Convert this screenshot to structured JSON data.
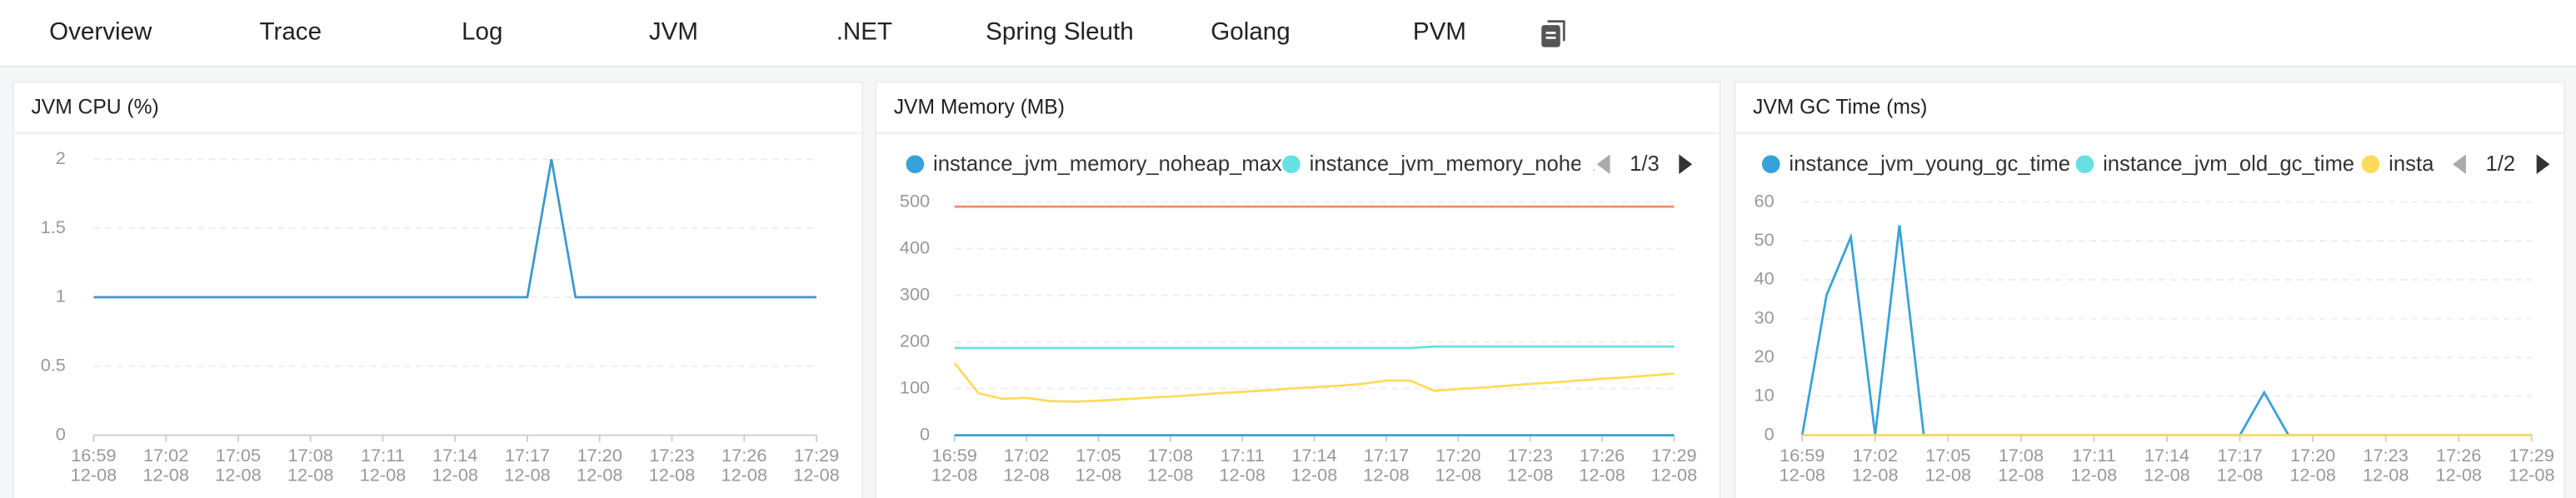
{
  "tabs": {
    "items": [
      "Overview",
      "Trace",
      "Log",
      "JVM",
      ".NET",
      "Spring Sleuth",
      "Golang",
      "PVM"
    ],
    "active": 3,
    "active_color": "#3a9cf0"
  },
  "chart_data": [
    {
      "type": "line",
      "title": "JVM CPU (%)",
      "categories": [
        "16:59",
        null,
        null,
        "17:02",
        null,
        null,
        "17:05",
        null,
        null,
        "17:08",
        null,
        null,
        "17:11",
        null,
        null,
        "17:14",
        null,
        null,
        "17:17",
        null,
        null,
        "17:20",
        null,
        null,
        "17:23",
        null,
        null,
        "17:26",
        null,
        null,
        "17:29"
      ],
      "date_label": "12-08",
      "series": [
        {
          "color": "#3c98cf",
          "values": [
            1,
            1,
            1,
            1,
            1,
            1,
            1,
            1,
            1,
            1,
            1,
            1,
            1,
            1,
            1,
            1,
            1,
            1,
            1,
            2,
            1,
            1,
            1,
            1,
            1,
            1,
            1,
            1,
            1,
            1,
            1
          ]
        }
      ],
      "ylim": [
        0,
        2
      ],
      "yticks": [
        0,
        0.5,
        1,
        1.5,
        2
      ],
      "grid": true
    },
    {
      "type": "line",
      "title": "JVM Memory (MB)",
      "categories": [
        "16:59",
        null,
        null,
        "17:02",
        null,
        null,
        "17:05",
        null,
        null,
        "17:08",
        null,
        null,
        "17:11",
        null,
        null,
        "17:14",
        null,
        null,
        "17:17",
        null,
        null,
        "17:20",
        null,
        null,
        "17:23",
        null,
        null,
        "17:26",
        null,
        null,
        "17:29"
      ],
      "date_label": "12-08",
      "series": [
        {
          "name": "instance_jvm_memory_noheap_max",
          "color": "#37a2da",
          "values": [
            0,
            0,
            0,
            0,
            0,
            0,
            0,
            0,
            0,
            0,
            0,
            0,
            0,
            0,
            0,
            0,
            0,
            0,
            0,
            0,
            0,
            0,
            0,
            0,
            0,
            0,
            0,
            0,
            0,
            0,
            0
          ]
        },
        {
          "name": "instance_jvm_memory_nohea",
          "color": "#67e0e3",
          "values": [
            187,
            187,
            187,
            187,
            187,
            187,
            187,
            187,
            187,
            187,
            187,
            187,
            187,
            187,
            187,
            187,
            187,
            187,
            187,
            187,
            190,
            190,
            190,
            190,
            190,
            190,
            190,
            190,
            190,
            190,
            190
          ]
        },
        {
          "color": "#f08a6c",
          "values": [
            490,
            490,
            490,
            490,
            490,
            490,
            490,
            490,
            490,
            490,
            490,
            490,
            490,
            490,
            490,
            490,
            490,
            490,
            490,
            490,
            490,
            490,
            490,
            490,
            490,
            490,
            490,
            490,
            490,
            490,
            490
          ]
        },
        {
          "color": "#ffdb5c",
          "values": [
            155,
            90,
            78,
            80,
            73,
            72,
            74,
            77,
            80,
            83,
            86,
            90,
            93,
            96,
            100,
            103,
            106,
            110,
            117,
            117,
            95,
            99,
            102,
            106,
            110,
            113,
            117,
            121,
            124,
            128,
            132
          ]
        }
      ],
      "legend_page": "1/3",
      "ylim": [
        0,
        500
      ],
      "yticks": [
        0,
        100,
        200,
        300,
        400,
        500
      ],
      "grid": true
    },
    {
      "type": "line",
      "title": "JVM GC Time (ms)",
      "categories": [
        "16:59",
        null,
        null,
        "17:02",
        null,
        null,
        "17:05",
        null,
        null,
        "17:08",
        null,
        null,
        "17:11",
        null,
        null,
        "17:14",
        null,
        null,
        "17:17",
        null,
        null,
        "17:20",
        null,
        null,
        "17:23",
        null,
        null,
        "17:26",
        null,
        null,
        "17:29"
      ],
      "date_label": "12-08",
      "series": [
        {
          "name": "instance_jvm_young_gc_time",
          "color": "#37a2da",
          "values": [
            0,
            36,
            51,
            0,
            54,
            0,
            0,
            0,
            0,
            0,
            0,
            0,
            0,
            0,
            0,
            0,
            0,
            0,
            0,
            11,
            0,
            0,
            0,
            0,
            0,
            0,
            0,
            0,
            0,
            0,
            0
          ]
        },
        {
          "name": "instance_jvm_old_gc_time",
          "color": "#67e0e3",
          "values": [
            0,
            0,
            0,
            0,
            0,
            0,
            0,
            0,
            0,
            0,
            0,
            0,
            0,
            0,
            0,
            0,
            0,
            0,
            0,
            0,
            0,
            0,
            0,
            0,
            0,
            0,
            0,
            0,
            0,
            0,
            0
          ]
        },
        {
          "name": "insta",
          "color": "#ffdb5c",
          "values": [
            0,
            0,
            0,
            0,
            0,
            0,
            0,
            0,
            0,
            0,
            0,
            0,
            0,
            0,
            0,
            0,
            0,
            0,
            0,
            0,
            0,
            0,
            0,
            0,
            0,
            0,
            0,
            0,
            0,
            0,
            0
          ]
        }
      ],
      "legend_page": "1/2",
      "ylim": [
        0,
        60
      ],
      "yticks": [
        0,
        10,
        20,
        30,
        40,
        50,
        60
      ],
      "grid": true
    }
  ]
}
